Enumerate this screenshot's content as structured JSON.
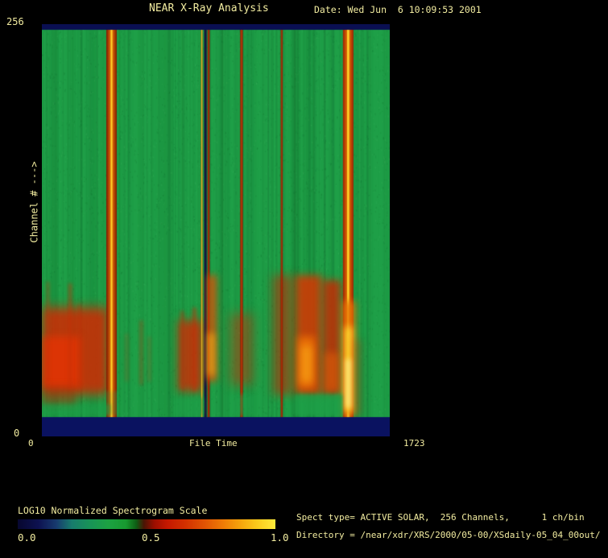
{
  "window": {
    "background": "#000000",
    "text_color": "#F2ECA0"
  },
  "header": {
    "title": "NEAR X-Ray Analysis",
    "date": "Date: Wed Jun  6 10:09:53 2001"
  },
  "axes": {
    "y_top_label": "256",
    "y_bottom_label": "0",
    "y_title": "Channel # --->",
    "x_left_label": "0",
    "x_right_label": "1723",
    "x_title": "File Time"
  },
  "colorbar": {
    "title": "LOG10 Normalized Spectrogram Scale",
    "tick_labels": [
      "0.0",
      "0.5",
      "1.0"
    ],
    "stops": [
      [
        0.0,
        "#07072F"
      ],
      [
        0.08,
        "#0D1150"
      ],
      [
        0.15,
        "#173A6E"
      ],
      [
        0.21,
        "#177C6C"
      ],
      [
        0.28,
        "#189357"
      ],
      [
        0.35,
        "#1CA243"
      ],
      [
        0.42,
        "#17992F"
      ],
      [
        0.46,
        "#0E5E14"
      ],
      [
        0.49,
        "#4A1404"
      ],
      [
        0.53,
        "#9C0E00"
      ],
      [
        0.58,
        "#C41800"
      ],
      [
        0.65,
        "#D23000"
      ],
      [
        0.73,
        "#E25604"
      ],
      [
        0.8,
        "#EF7D06"
      ],
      [
        0.87,
        "#F6A80D"
      ],
      [
        0.93,
        "#FBCB1C"
      ],
      [
        1.0,
        "#FFEB3B"
      ]
    ]
  },
  "footer": {
    "spect_line": "Spect type= ACTIVE SOLAR,  256 Channels,      1 ch/bin",
    "directory_line": "Directory = /near/xdr/XRS/2000/05-00/XSdaily-05_04_00out/"
  },
  "chart_data": {
    "type": "heatmap",
    "title": "NEAR X-Ray Analysis",
    "xlabel": "File Time",
    "ylabel": "Channel # --->",
    "x_range": [
      0,
      1723
    ],
    "y_range": [
      0,
      256
    ],
    "x_ticks": [
      0,
      1723
    ],
    "y_ticks": [
      0,
      256
    ],
    "scale_label": "LOG10 Normalized Spectrogram Scale",
    "scale_range": [
      0.0,
      1.0
    ],
    "base_color": "#1E9F47",
    "faint_color": "#0A5B1E",
    "spike_color": "#C23008",
    "top_band": {
      "ch0": 252.5,
      "ch1": 256,
      "color": "#0A0F52"
    },
    "bottom_band": {
      "ch0": 0,
      "ch1": 12,
      "color": "#0A1260"
    },
    "faint_streaks": [
      {
        "t": 56,
        "w": 28,
        "alpha": 0.22
      },
      {
        "t": 150,
        "w": 22,
        "alpha": 0.15
      },
      {
        "t": 243,
        "w": 18,
        "alpha": 0.12
      },
      {
        "t": 610,
        "w": 80,
        "alpha": 0.1
      },
      {
        "t": 905,
        "w": 30,
        "alpha": 0.07
      },
      {
        "t": 1252,
        "w": 26,
        "alpha": 0.18
      },
      {
        "t": 1320,
        "w": 22,
        "alpha": 0.22
      }
    ],
    "blobs": [
      {
        "t0": 0,
        "t1": 330,
        "ch0": 26,
        "ch1": 80,
        "color": "#D22802",
        "alpha": 0.85,
        "blur": 7,
        "layer": 1
      },
      {
        "t0": 0,
        "t1": 190,
        "ch0": 30,
        "ch1": 62,
        "color": "#E03404",
        "alpha": 0.9,
        "blur": 5,
        "layer": 1
      },
      {
        "t0": 0,
        "t1": 170,
        "ch0": 19,
        "ch1": 31,
        "color": "#A23208",
        "alpha": 0.45,
        "blur": 5,
        "layer": 1
      },
      {
        "t0": 676,
        "t1": 800,
        "ch0": 28,
        "ch1": 72,
        "color": "#D22802",
        "alpha": 0.8,
        "blur": 6,
        "layer": 1
      },
      {
        "t0": 936,
        "t1": 1044,
        "ch0": 32,
        "ch1": 76,
        "color": "#C83006",
        "alpha": 0.5,
        "blur": 7,
        "layer": 1
      },
      {
        "t0": 1146,
        "t1": 1240,
        "ch0": 26,
        "ch1": 100,
        "color": "#C22804",
        "alpha": 0.6,
        "blur": 6,
        "layer": 1
      },
      {
        "t0": 1256,
        "t1": 1384,
        "ch0": 26,
        "ch1": 100,
        "color": "#CE3A04",
        "alpha": 0.9,
        "blur": 5,
        "layer": 1
      },
      {
        "t0": 1268,
        "t1": 1352,
        "ch0": 30,
        "ch1": 62,
        "color": "#EE7406",
        "alpha": 0.85,
        "blur": 5,
        "layer": 1
      },
      {
        "t0": 1284,
        "t1": 1336,
        "ch0": 34,
        "ch1": 56,
        "color": "#F8A616",
        "alpha": 0.7,
        "blur": 5,
        "layer": 1
      },
      {
        "t0": 1390,
        "t1": 1482,
        "ch0": 26,
        "ch1": 97,
        "color": "#C42C04",
        "alpha": 0.85,
        "blur": 5,
        "layer": 1
      },
      {
        "t0": 1398,
        "t1": 1472,
        "ch0": 28,
        "ch1": 52,
        "color": "#E06008",
        "alpha": 0.6,
        "blur": 5,
        "layer": 1
      },
      {
        "t0": 820,
        "t1": 864,
        "ch0": 34,
        "ch1": 100,
        "color": "#E24A04",
        "alpha": 0.85,
        "blur": 4,
        "layer": 2
      },
      {
        "t0": 824,
        "t1": 852,
        "ch0": 38,
        "ch1": 64,
        "color": "#F8B018",
        "alpha": 0.9,
        "blur": 4,
        "layer": 2
      },
      {
        "t0": 1490,
        "t1": 1552,
        "ch0": 13,
        "ch1": 84,
        "color": "#E87606",
        "alpha": 0.85,
        "blur": 4,
        "layer": 2
      },
      {
        "t0": 1502,
        "t1": 1536,
        "ch0": 15,
        "ch1": 68,
        "color": "#FFE838",
        "alpha": 0.95,
        "blur": 4,
        "layer": 2
      },
      {
        "t0": 1506,
        "t1": 1530,
        "ch0": 18,
        "ch1": 48,
        "color": "#FFF9A0",
        "alpha": 0.8,
        "blur": 3,
        "layer": 2
      },
      {
        "t0": 1550,
        "t1": 1578,
        "ch0": 13,
        "ch1": 60,
        "color": "#B02A06",
        "alpha": 0.4,
        "blur": 5,
        "layer": 2
      }
    ],
    "spikes": [
      {
        "t": 30,
        "w": 12,
        "ch0": 30,
        "ch1": 96,
        "alpha": 0.5
      },
      {
        "t": 140,
        "w": 16,
        "ch0": 30,
        "ch1": 95,
        "alpha": 0.55
      },
      {
        "t": 185,
        "w": 12,
        "ch0": 30,
        "ch1": 82,
        "alpha": 0.4
      },
      {
        "t": 290,
        "w": 14,
        "ch0": 30,
        "ch1": 74,
        "alpha": 0.5
      },
      {
        "t": 420,
        "w": 12,
        "ch0": 34,
        "ch1": 64,
        "alpha": 0.3
      },
      {
        "t": 492,
        "w": 14,
        "ch0": 32,
        "ch1": 72,
        "alpha": 0.42
      },
      {
        "t": 532,
        "w": 12,
        "ch0": 34,
        "ch1": 62,
        "alpha": 0.32
      },
      {
        "t": 695,
        "w": 16,
        "ch0": 29,
        "ch1": 78,
        "alpha": 0.5
      },
      {
        "t": 756,
        "w": 18,
        "ch0": 28,
        "ch1": 80,
        "alpha": 0.6
      }
    ],
    "streaks": [
      {
        "t": 345,
        "w": 52,
        "edge": "#7E1602",
        "core": "#EE7E06",
        "center_color": "#FFD22A",
        "center_w": 8,
        "alpha": 1
      },
      {
        "t": 792,
        "w": 9,
        "edge": "#8A6A10",
        "core": "#E8C22E",
        "alpha": 1
      },
      {
        "t": 810,
        "w": 13,
        "edge": "#12123E",
        "core": "#12123E",
        "alpha": 0.95
      },
      {
        "t": 826,
        "w": 11,
        "edge": "#6E1602",
        "core": "#C62A02",
        "alpha": 0.95
      },
      {
        "t": 989,
        "w": 14,
        "edge": "#701802",
        "core": "#CE3404",
        "alpha": 0.95
      },
      {
        "t": 1188,
        "w": 11,
        "edge": "#6E1802",
        "core": "#C42C02",
        "alpha": 0.9
      },
      {
        "t": 1517,
        "w": 52,
        "edge": "#A01E02",
        "core": "#E87E06",
        "center_color": "#FFD22A",
        "center_w": 10,
        "alpha": 1
      }
    ],
    "green_patches": [
      {
        "t0": 1250,
        "t1": 1488,
        "ch0": 13,
        "ch1": 26,
        "alpha": 0.8
      },
      {
        "t0": 0,
        "t1": 340,
        "ch0": 13,
        "ch1": 20,
        "alpha": 0.55
      },
      {
        "t0": 660,
        "t1": 800,
        "ch0": 13,
        "ch1": 24,
        "alpha": 0.6
      },
      {
        "t0": 930,
        "t1": 1050,
        "ch0": 13,
        "ch1": 26,
        "alpha": 0.5
      },
      {
        "t0": 318,
        "t1": 336,
        "ch0": 13,
        "ch1": 28,
        "alpha": 0.5
      },
      {
        "t0": 356,
        "t1": 374,
        "ch0": 13,
        "ch1": 28,
        "alpha": 0.5
      }
    ]
  }
}
